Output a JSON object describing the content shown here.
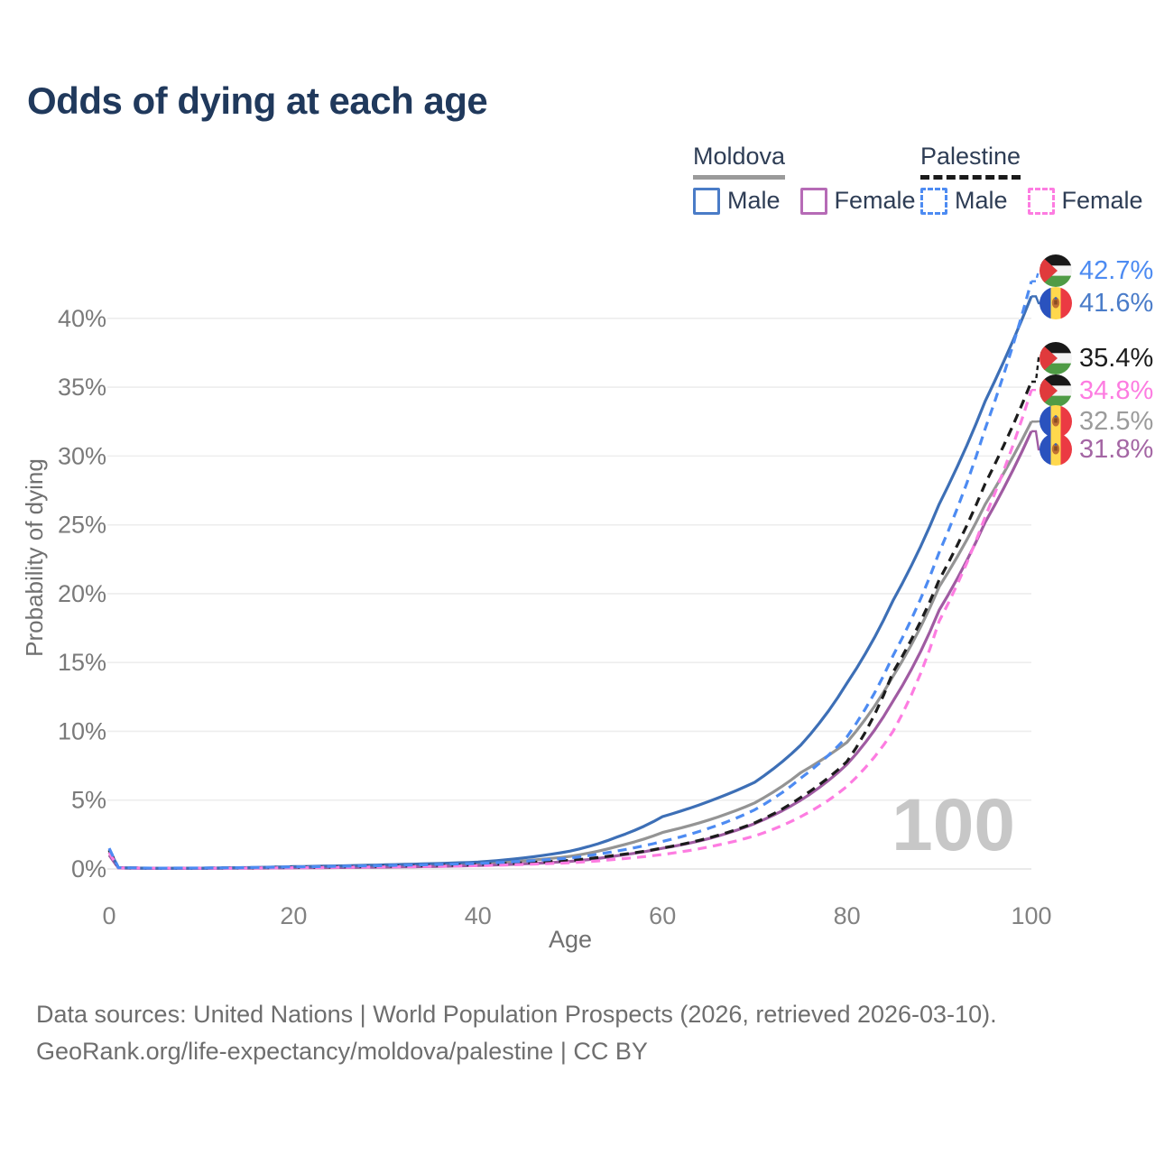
{
  "title": "Odds of dying at each age",
  "legend": {
    "groups": [
      {
        "name": "Moldova",
        "line_style": "solid",
        "line_color": "#9a9a9a",
        "items": [
          {
            "label": "Male",
            "color": "#4a7cc7",
            "dashed": false
          },
          {
            "label": "Female",
            "color": "#b66bb6",
            "dashed": false
          }
        ]
      },
      {
        "name": "Palestine",
        "line_style": "dashed",
        "line_color": "#1a1a1a",
        "items": [
          {
            "label": "Male",
            "color": "#4d8bf2",
            "dashed": true
          },
          {
            "label": "Female",
            "color": "#fd7ce1",
            "dashed": true
          }
        ]
      }
    ]
  },
  "y_axis": {
    "label": "Probability of dying",
    "ticks": [
      {
        "label": "0%",
        "value": 0
      },
      {
        "label": "5%",
        "value": 5
      },
      {
        "label": "10%",
        "value": 10
      },
      {
        "label": "15%",
        "value": 15
      },
      {
        "label": "20%",
        "value": 20
      },
      {
        "label": "25%",
        "value": 25
      },
      {
        "label": "30%",
        "value": 30
      },
      {
        "label": "35%",
        "value": 35
      },
      {
        "label": "40%",
        "value": 40
      }
    ]
  },
  "x_axis": {
    "label": "Age",
    "ticks": [
      0,
      20,
      40,
      60,
      80,
      100
    ]
  },
  "watermark": "100",
  "end_labels": [
    {
      "series": "palestine_male",
      "value": "42.7%",
      "flag": "palestine",
      "color": "#4d8bf2"
    },
    {
      "series": "moldova_male",
      "value": "41.6%",
      "flag": "moldova",
      "color": "#4a7cc9"
    },
    {
      "series": "palestine_both",
      "value": "35.4%",
      "flag": "palestine",
      "color": "#1c1c1c"
    },
    {
      "series": "palestine_female",
      "value": "34.8%",
      "flag": "palestine",
      "color": "#fd7ce1"
    },
    {
      "series": "moldova_both",
      "value": "32.5%",
      "flag": "moldova",
      "color": "#9b9b9b"
    },
    {
      "series": "moldova_female",
      "value": "31.8%",
      "flag": "moldova",
      "color": "#a466a4"
    }
  ],
  "footer": {
    "line1": "Data sources: United Nations | World Population Prospects (2026, retrieved 2026-03-10).",
    "line2": "GeoRank.org/life-expectancy/moldova/palestine | CC BY"
  },
  "chart_data": {
    "type": "line",
    "title": "Odds of dying at each age",
    "xlabel": "Age",
    "ylabel": "Probability of dying",
    "xlim": [
      0,
      100
    ],
    "ylim_percent": [
      0,
      44
    ],
    "grid": "horizontal",
    "x_ticks": [
      0,
      20,
      40,
      60,
      80,
      100
    ],
    "y_ticks_percent": [
      0,
      5,
      10,
      15,
      20,
      25,
      30,
      35,
      40
    ],
    "legend_position": "top-right",
    "ages": [
      0,
      1,
      5,
      10,
      20,
      30,
      40,
      50,
      55,
      60,
      65,
      70,
      75,
      80,
      85,
      90,
      95,
      100
    ],
    "series": [
      {
        "id": "moldova_both",
        "name": "Moldova (both sexes)",
        "country": "Moldova",
        "sex": "both",
        "color": "#949494",
        "dash": false,
        "final_value_percent": 32.5,
        "values_percent": [
          1.2,
          0.08,
          0.045,
          0.05,
          0.12,
          0.22,
          0.38,
          0.92,
          1.62,
          2.65,
          3.55,
          4.8,
          7.0,
          9.2,
          14.0,
          20.5,
          26.5,
          32.5
        ]
      },
      {
        "id": "moldova_female",
        "name": "Moldova Female",
        "country": "Moldova",
        "sex": "female",
        "color": "#a05ba2",
        "dash": false,
        "final_value_percent": 31.8,
        "values_percent": [
          1.0,
          0.07,
          0.04,
          0.04,
          0.08,
          0.13,
          0.25,
          0.55,
          0.95,
          1.5,
          2.2,
          3.3,
          5.0,
          7.6,
          12.2,
          18.8,
          25.2,
          31.8
        ]
      },
      {
        "id": "moldova_male",
        "name": "Moldova Male",
        "country": "Moldova",
        "sex": "male",
        "color": "#3d6fb6",
        "dash": false,
        "final_value_percent": 41.6,
        "values_percent": [
          1.4,
          0.09,
          0.05,
          0.06,
          0.17,
          0.3,
          0.5,
          1.3,
          2.3,
          3.8,
          4.9,
          6.3,
          9.0,
          13.5,
          19.5,
          26.5,
          34.0,
          41.6
        ]
      },
      {
        "id": "palestine_both",
        "name": "Palestine (both sexes)",
        "country": "Palestine",
        "sex": "both",
        "color": "#1c1c1c",
        "dash": true,
        "final_value_percent": 35.4,
        "values_percent": [
          1.35,
          0.09,
          0.055,
          0.06,
          0.12,
          0.2,
          0.32,
          0.62,
          1.0,
          1.52,
          2.25,
          3.35,
          5.2,
          7.8,
          14.3,
          21.0,
          28.0,
          35.4
        ]
      },
      {
        "id": "palestine_female",
        "name": "Palestine Female",
        "country": "Palestine",
        "sex": "female",
        "color": "#fd7ce1",
        "dash": true,
        "final_value_percent": 34.8,
        "values_percent": [
          1.2,
          0.08,
          0.05,
          0.05,
          0.09,
          0.15,
          0.24,
          0.45,
          0.7,
          1.05,
          1.6,
          2.4,
          3.8,
          6.0,
          10.0,
          18.0,
          25.6,
          34.8
        ]
      },
      {
        "id": "palestine_male",
        "name": "Palestine Male",
        "country": "Palestine",
        "sex": "male",
        "color": "#4d8bf2",
        "dash": true,
        "final_value_percent": 42.7,
        "values_percent": [
          1.5,
          0.1,
          0.06,
          0.07,
          0.15,
          0.25,
          0.4,
          0.8,
          1.3,
          2.0,
          2.95,
          4.3,
          6.6,
          9.6,
          15.5,
          23.0,
          32.0,
          42.7
        ]
      }
    ]
  }
}
